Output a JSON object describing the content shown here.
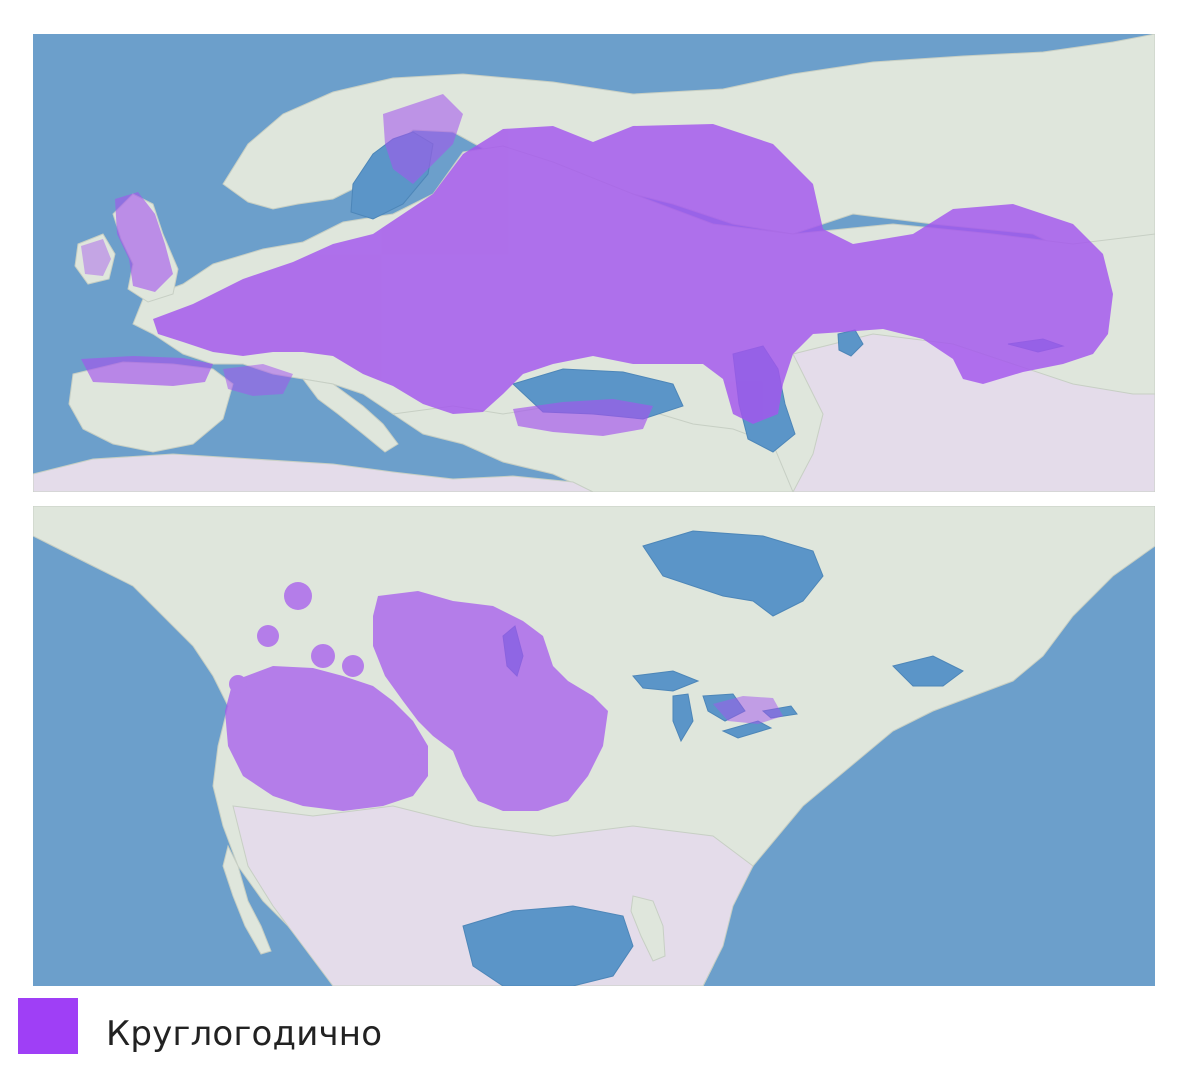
{
  "colors": {
    "ocean": "#6c9fcb",
    "land": "#dfe6dc",
    "land_dry": "#e4dcea",
    "lake": "#5b95c8",
    "range": "#a455ee"
  },
  "legend": {
    "items": [
      {
        "label": "Круглогодично",
        "color": "#9f3ff6"
      }
    ]
  }
}
